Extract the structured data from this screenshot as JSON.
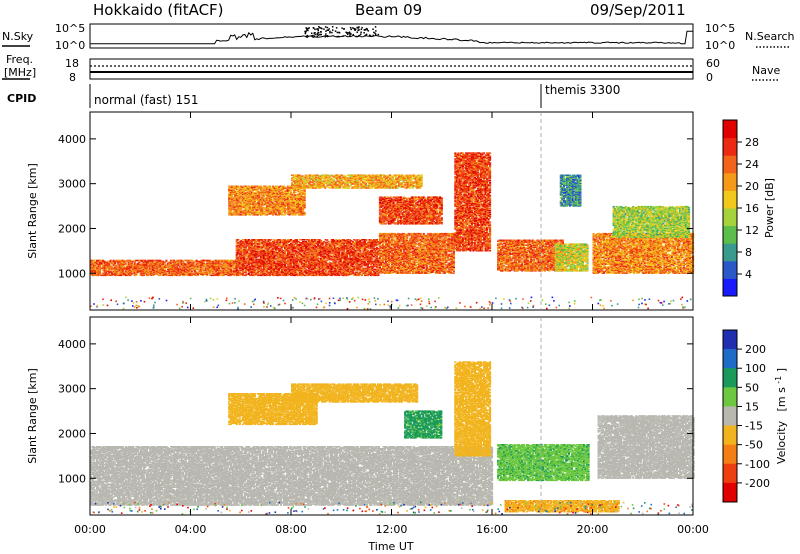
{
  "header": {
    "title": "Hokkaido (fitACF)",
    "beam": "Beam 09",
    "date": "09/Sep/2011"
  },
  "strip_nsky": {
    "left_label": "N.Sky",
    "right_label": "N.Search",
    "left_ticks": [
      "10^5",
      "10^0"
    ],
    "right_ticks": [
      "10^5",
      "10^0"
    ]
  },
  "strip_freq": {
    "left_label": "Freq.",
    "left_unit": "[MHz]",
    "right_label": "Nave",
    "left_ticks": [
      "18",
      "8"
    ],
    "right_ticks": [
      "60",
      "0"
    ]
  },
  "cpid": {
    "label": "CPID",
    "modes": [
      {
        "name": "normal (fast) 151",
        "start_hour": 0
      },
      {
        "name": "themis 3300",
        "start_hour": 18
      }
    ]
  },
  "chart_data": [
    {
      "type": "heatmap",
      "name": "power",
      "quantity": "Power",
      "ylabel": "Slant Range [km]",
      "xlabel": "Time UT",
      "x_ticks": [
        "00:00",
        "04:00",
        "08:00",
        "12:00",
        "16:00",
        "20:00",
        "00:00"
      ],
      "x_range_hours": [
        0,
        24
      ],
      "y_ticks": [
        1000,
        2000,
        3000,
        4000
      ],
      "y_range_km": [
        180,
        4600
      ],
      "colorbar": {
        "label": "Power [dB]",
        "ticks": [
          4,
          8,
          12,
          16,
          20,
          24,
          28
        ],
        "range": [
          0,
          32
        ],
        "colors": [
          "#1a1aff",
          "#2b58c8",
          "#3a9a8e",
          "#5cbd4a",
          "#a6d23c",
          "#f2c81a",
          "#f49a18",
          "#f2641a",
          "#ec2a12",
          "#e00000"
        ]
      },
      "regions": [
        {
          "t0": 0.0,
          "t1": 5.8,
          "r0": 950,
          "r1": 1300,
          "level": 24
        },
        {
          "t0": 5.8,
          "t1": 11.5,
          "r0": 950,
          "r1": 1750,
          "level": 26
        },
        {
          "t0": 11.5,
          "t1": 14.5,
          "r0": 1000,
          "r1": 1900,
          "level": 24
        },
        {
          "t0": 14.5,
          "t1": 15.9,
          "r0": 1500,
          "r1": 3700,
          "level": 26
        },
        {
          "t0": 5.5,
          "t1": 8.5,
          "r0": 2300,
          "r1": 2950,
          "level": 22
        },
        {
          "t0": 8.0,
          "t1": 13.2,
          "r0": 2900,
          "r1": 3200,
          "level": 20
        },
        {
          "t0": 11.5,
          "t1": 14.0,
          "r0": 2100,
          "r1": 2700,
          "level": 26
        },
        {
          "t0": 16.2,
          "t1": 18.8,
          "r0": 1050,
          "r1": 1750,
          "level": 24
        },
        {
          "t0": 18.5,
          "t1": 19.8,
          "r0": 1050,
          "r1": 1650,
          "level": 16
        },
        {
          "t0": 20.0,
          "t1": 24.0,
          "r0": 1000,
          "r1": 1900,
          "level": 22
        },
        {
          "t0": 20.8,
          "t1": 23.8,
          "r0": 1800,
          "r1": 2500,
          "level": 14
        },
        {
          "t0": 18.7,
          "t1": 19.5,
          "r0": 2500,
          "r1": 3200,
          "level": 8
        }
      ]
    },
    {
      "type": "heatmap",
      "name": "velocity",
      "quantity": "Velocity",
      "ylabel": "Slant Range [km]",
      "xlabel": "Time UT",
      "x_ticks": [
        "00:00",
        "04:00",
        "08:00",
        "12:00",
        "16:00",
        "20:00",
        "00:00"
      ],
      "x_range_hours": [
        0,
        24
      ],
      "y_ticks": [
        1000,
        2000,
        3000,
        4000
      ],
      "y_range_km": [
        180,
        4600
      ],
      "colorbar": {
        "label_main": "Velocity",
        "label_unit": "[m s",
        "label_exp": "-1",
        "label_close": "]",
        "ticks": [
          200,
          100,
          50,
          15,
          -15,
          -50,
          -100,
          -200
        ],
        "colors": [
          "#1f2fb0",
          "#1e6cc8",
          "#1a9a5a",
          "#6cc840",
          "#b8b8b0",
          "#f2b41e",
          "#f27e14",
          "#ee3e10",
          "#e00000"
        ]
      },
      "regions": [
        {
          "t0": 0.0,
          "t1": 16.0,
          "r0": 400,
          "r1": 1700,
          "level": 0
        },
        {
          "t0": 5.5,
          "t1": 9.0,
          "r0": 2200,
          "r1": 2900,
          "level": -30
        },
        {
          "t0": 8.0,
          "t1": 13.0,
          "r0": 2700,
          "r1": 3100,
          "level": -30
        },
        {
          "t0": 12.5,
          "t1": 14.0,
          "r0": 1900,
          "r1": 2500,
          "level": 60
        },
        {
          "t0": 14.5,
          "t1": 15.9,
          "r0": 1500,
          "r1": 3600,
          "level": -30
        },
        {
          "t0": 16.2,
          "t1": 19.8,
          "r0": 950,
          "r1": 1750,
          "level": 40
        },
        {
          "t0": 20.2,
          "t1": 24.0,
          "r0": 1000,
          "r1": 2400,
          "level": 0
        },
        {
          "t0": 16.5,
          "t1": 21.0,
          "r0": 250,
          "r1": 500,
          "level": -40
        }
      ]
    }
  ]
}
